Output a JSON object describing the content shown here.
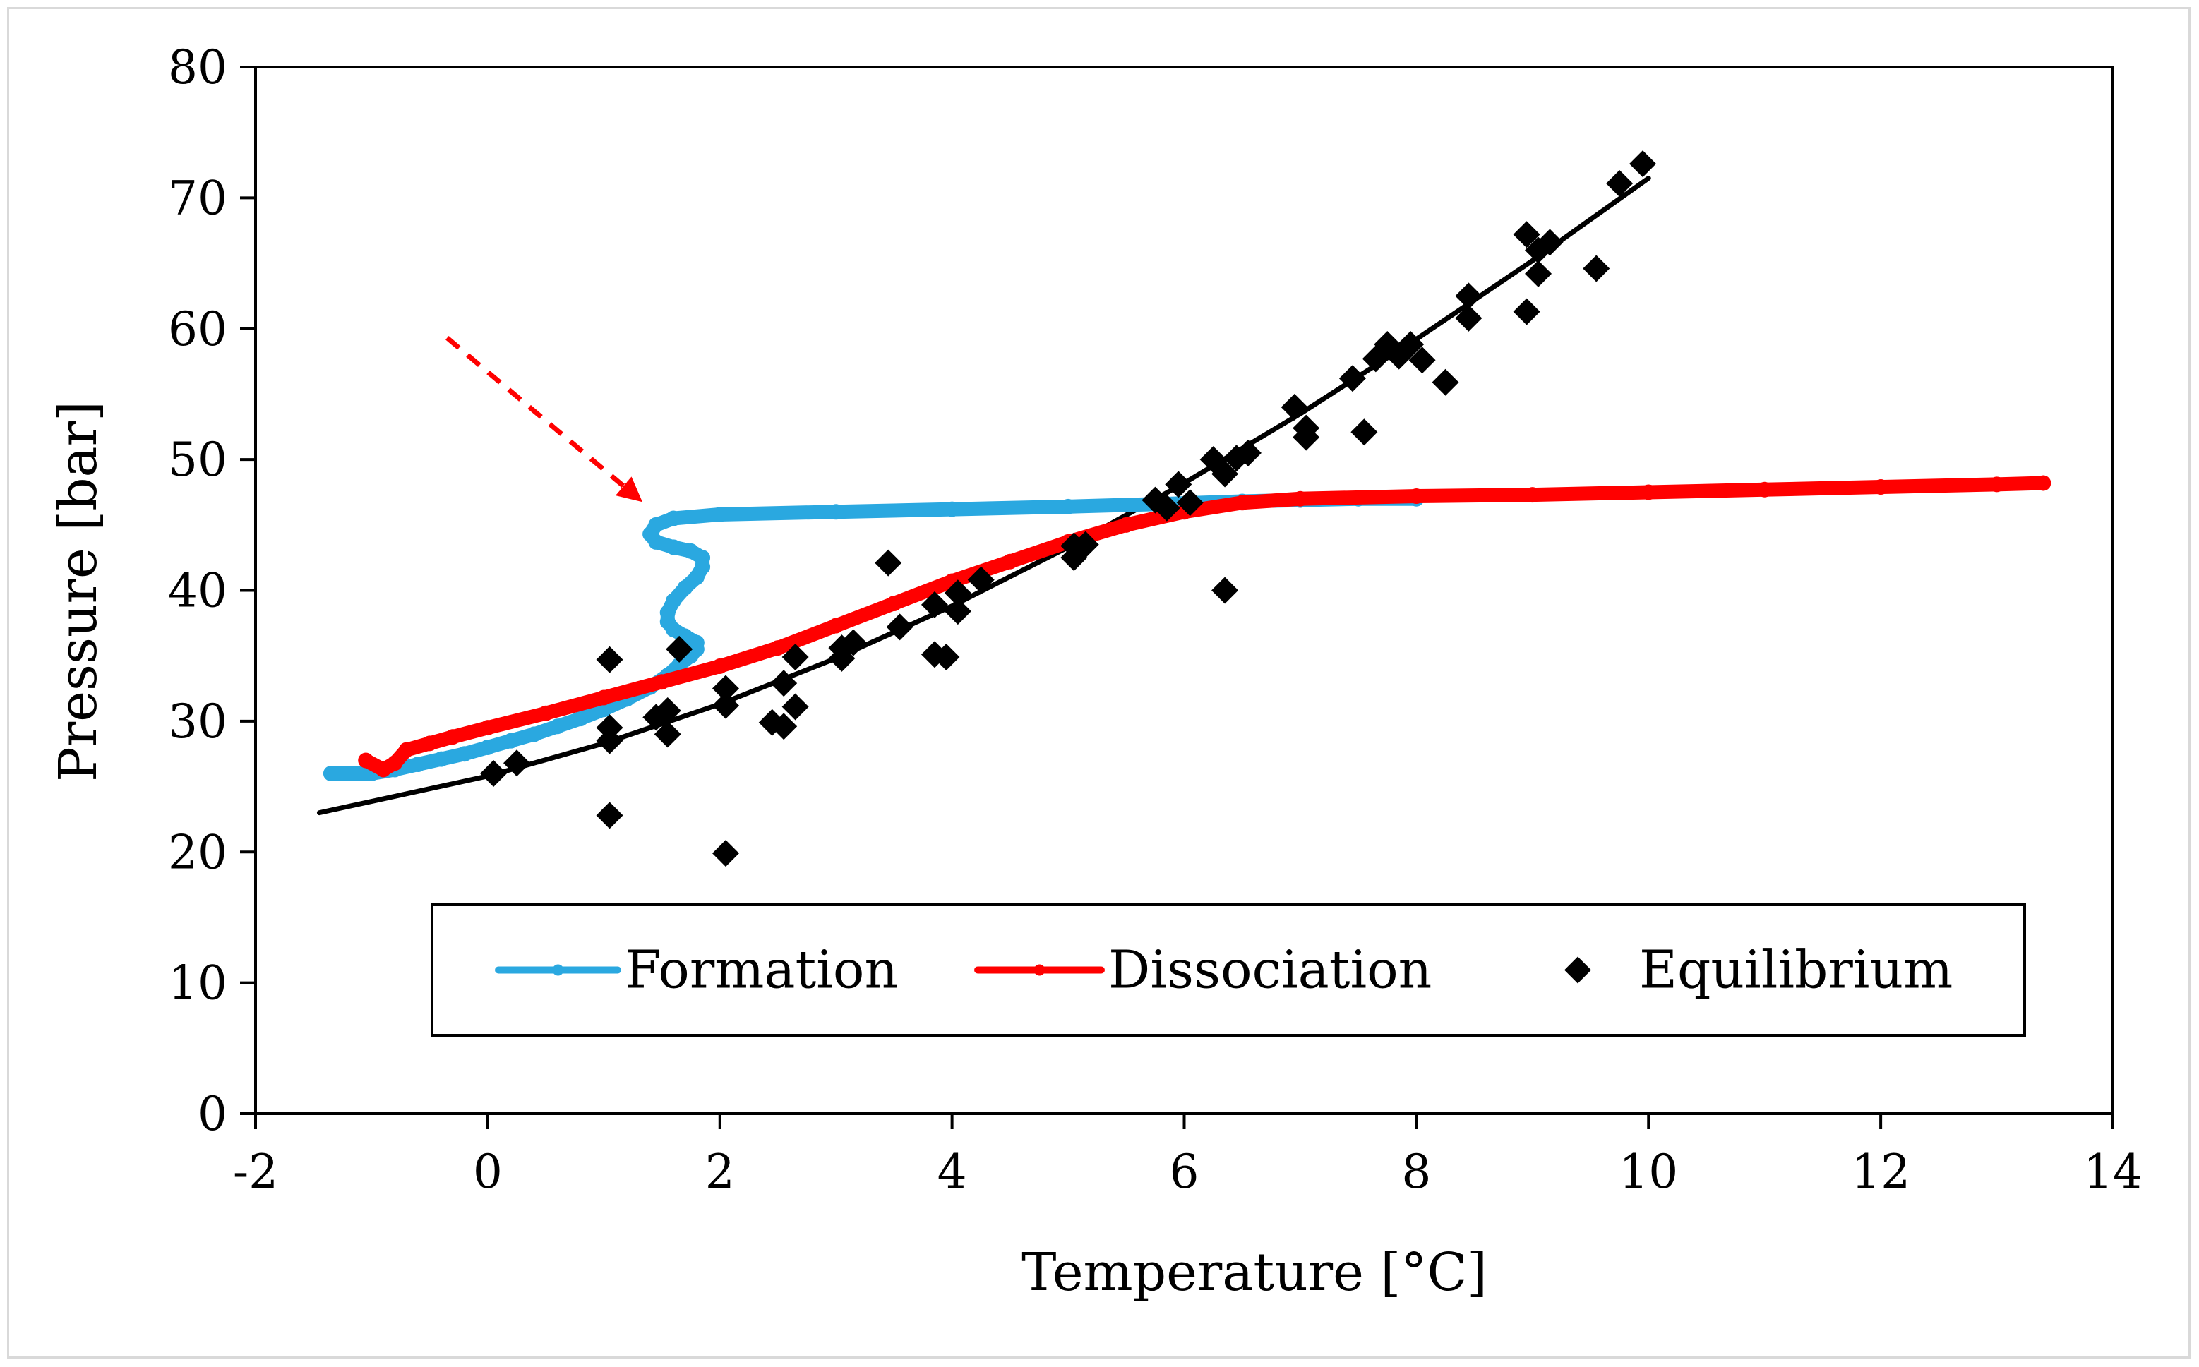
{
  "chart_data": {
    "type": "scatter",
    "title": "",
    "xlabel": "Temperature [°C]",
    "ylabel": "Pressure [bar]",
    "xlim": [
      -2,
      14
    ],
    "ylim": [
      0,
      80
    ],
    "xticks": [
      -2,
      0,
      2,
      4,
      6,
      8,
      10,
      12,
      14
    ],
    "yticks": [
      0,
      10,
      20,
      30,
      40,
      50,
      60,
      70,
      80
    ],
    "grid": false,
    "legend_position": "bottom",
    "colors": {
      "formation": "#2aa8e0",
      "dissociation": "#ff0000",
      "equilibrium": "#000000",
      "arrow": "#ff0000"
    },
    "series": [
      {
        "name": "Formation",
        "style": "line-with-dots",
        "x": [
          -1.35,
          -1.2,
          -1.0,
          -0.8,
          -0.6,
          -0.4,
          -0.2,
          0.0,
          0.2,
          0.4,
          0.6,
          0.8,
          1.0,
          1.2,
          1.4,
          1.55,
          1.65,
          1.75,
          1.8,
          1.8,
          1.7,
          1.6,
          1.55,
          1.55,
          1.6,
          1.7,
          1.8,
          1.85,
          1.85,
          1.75,
          1.6,
          1.45,
          1.4,
          1.45,
          1.6,
          2.0,
          3.0,
          4.0,
          5.0,
          5.8,
          6.5,
          7.0,
          7.5,
          8.0
        ],
        "y": [
          26.0,
          26.0,
          26.0,
          26.3,
          26.7,
          27.1,
          27.5,
          28.0,
          28.5,
          29.0,
          29.6,
          30.2,
          30.9,
          31.7,
          32.6,
          33.5,
          34.3,
          35.0,
          35.5,
          36.0,
          36.5,
          37.0,
          37.6,
          38.3,
          39.2,
          40.2,
          41.0,
          41.8,
          42.5,
          43.0,
          43.3,
          43.7,
          44.3,
          45.0,
          45.5,
          45.8,
          46.0,
          46.2,
          46.4,
          46.6,
          46.8,
          46.9,
          47.0,
          47.0
        ]
      },
      {
        "name": "Dissociation",
        "style": "line-with-dots",
        "x": [
          -1.05,
          -0.9,
          -0.8,
          -0.7,
          -0.5,
          -0.3,
          0.0,
          0.5,
          1.0,
          1.5,
          2.0,
          2.5,
          3.0,
          3.5,
          4.0,
          4.5,
          5.0,
          5.5,
          6.0,
          6.5,
          7.0,
          8.0,
          9.0,
          10.0,
          11.0,
          12.0,
          13.0,
          13.4
        ],
        "y": [
          27.0,
          26.3,
          26.8,
          27.8,
          28.3,
          28.8,
          29.5,
          30.6,
          31.8,
          33.0,
          34.2,
          35.6,
          37.3,
          39.0,
          40.7,
          42.2,
          43.7,
          45.0,
          46.0,
          46.7,
          47.0,
          47.2,
          47.3,
          47.5,
          47.7,
          47.9,
          48.1,
          48.2
        ]
      },
      {
        "name": "Equilibrium",
        "style": "markers",
        "marker": "diamond",
        "x": [
          0.05,
          0.25,
          1.05,
          1.05,
          1.05,
          1.05,
          1.45,
          1.55,
          1.55,
          1.65,
          2.05,
          2.05,
          2.05,
          2.45,
          2.55,
          2.55,
          2.65,
          2.65,
          3.05,
          3.05,
          3.15,
          3.45,
          3.55,
          3.85,
          3.85,
          3.95,
          4.05,
          4.05,
          4.25,
          5.05,
          5.05,
          5.15,
          5.75,
          5.85,
          5.95,
          6.05,
          6.25,
          6.35,
          6.35,
          6.45,
          6.55,
          6.95,
          7.05,
          7.05,
          7.45,
          7.55,
          7.65,
          7.75,
          7.85,
          7.95,
          8.05,
          8.25,
          8.45,
          8.45,
          8.95,
          8.95,
          9.05,
          9.05,
          9.15,
          9.55,
          9.75,
          9.95
        ],
        "y": [
          26,
          26.8,
          22.8,
          28.5,
          29.5,
          34.7,
          30.3,
          29,
          30.8,
          35.5,
          19.9,
          31.2,
          32.5,
          29.9,
          29.6,
          32.9,
          31.1,
          34.9,
          34.8,
          35.6,
          36,
          42.1,
          37.2,
          35.1,
          38.9,
          34.9,
          38.4,
          39.8,
          40.8,
          42.5,
          43.4,
          43.5,
          46.9,
          46.3,
          48.1,
          46.7,
          50,
          48.9,
          40,
          50.1,
          50.5,
          54,
          51.7,
          52.4,
          56.2,
          52.1,
          57.7,
          58.8,
          57.9,
          58.8,
          57.6,
          55.9,
          60.8,
          62.5,
          61.3,
          67.2,
          64.2,
          66,
          66.6,
          64.6,
          71.1,
          72.6
        ]
      },
      {
        "name": "Equilibrium fit",
        "style": "line",
        "x": [
          -1.45,
          0,
          1,
          2,
          3,
          4,
          5,
          6,
          7,
          8,
          9,
          10
        ],
        "y": [
          23.0,
          25.8,
          28.3,
          31.3,
          34.8,
          38.8,
          43.3,
          48.2,
          53.5,
          59.2,
          65.2,
          71.5
        ]
      }
    ],
    "legend": [
      {
        "label": "Formation",
        "style": "line"
      },
      {
        "label": "Dissociation",
        "style": "line"
      },
      {
        "label": "Equilibrium",
        "style": "marker"
      }
    ],
    "annotations": [
      {
        "type": "dashed-arrow",
        "from": [
          -0.35,
          59.3
        ],
        "to": [
          1.3,
          47.0
        ],
        "color": "#ff0000"
      }
    ]
  }
}
